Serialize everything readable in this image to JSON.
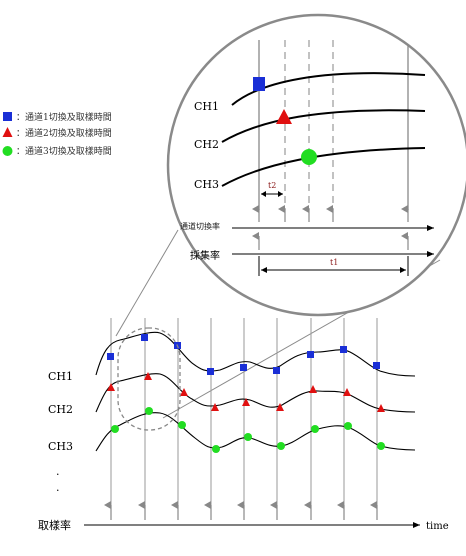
{
  "legend": [
    {
      "shape": "square",
      "color": "#1a2fd6",
      "text": "：通道1切換及取樣時間"
    },
    {
      "shape": "triangle",
      "color": "#e01010",
      "text": "：通道2切換及取樣時間"
    },
    {
      "shape": "circle",
      "color": "#22dd22",
      "text": "：通道3切換及取樣時間"
    }
  ],
  "zoom": {
    "channels": [
      "CH1",
      "CH2",
      "CH3"
    ],
    "t2_label": "t2",
    "t1_label": "t1",
    "switch_rate_label": "通道切換率",
    "acq_rate_label": "採集率"
  },
  "main": {
    "channels": [
      "CH1",
      "CH2",
      "CH3"
    ],
    "dots": ".\n.",
    "sample_rate_label": "取樣率",
    "time_label": "time"
  },
  "colors": {
    "ch1": "#1a2fd6",
    "ch2": "#e01010",
    "ch3": "#22dd22",
    "grid": "#9a9a9a",
    "circle": "#8a8a8a"
  }
}
